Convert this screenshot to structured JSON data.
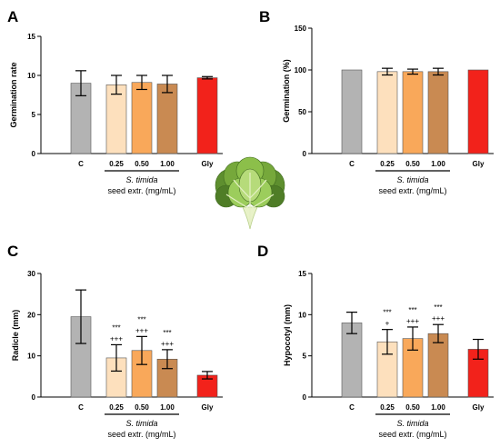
{
  "chart_data": [
    {
      "type": "bar",
      "panel": "A",
      "ylabel": "Germination rate",
      "ylim": [
        0,
        15
      ],
      "yticks": [
        0,
        5,
        10,
        15
      ],
      "categories": [
        "C",
        "0.25",
        "0.50",
        "1.00",
        "Gly"
      ],
      "values": [
        9.0,
        8.8,
        9.1,
        8.9,
        9.7
      ],
      "errors": [
        1.6,
        1.2,
        0.9,
        1.1,
        0.15
      ],
      "annotations": [
        [],
        [],
        [],
        [],
        []
      ],
      "group_label": "S. timida",
      "group_sublabel": "seed extr. (mg/mL)"
    },
    {
      "type": "bar",
      "panel": "B",
      "ylabel": "Germination (%)",
      "ylim": [
        0,
        150
      ],
      "yticks": [
        0,
        50,
        100,
        150
      ],
      "categories": [
        "C",
        "0.25",
        "0.50",
        "1.00",
        "Gly"
      ],
      "values": [
        100,
        98,
        98,
        98,
        100
      ],
      "errors": [
        0,
        4,
        3,
        4,
        0
      ],
      "annotations": [
        [],
        [],
        [],
        [],
        []
      ],
      "group_label": "S. timida",
      "group_sublabel": "seed extr. (mg/mL)"
    },
    {
      "type": "bar",
      "panel": "C",
      "ylabel": "Radicle (mm)",
      "ylim": [
        0,
        30
      ],
      "yticks": [
        0,
        10,
        20,
        30
      ],
      "categories": [
        "C",
        "0.25",
        "0.50",
        "1.00",
        "Gly"
      ],
      "values": [
        19.5,
        9.5,
        11.3,
        9.2,
        5.3
      ],
      "errors": [
        6.5,
        3.2,
        3.4,
        2.3,
        0.9
      ],
      "annotations": [
        [],
        [
          "***",
          "+++"
        ],
        [
          "***",
          "+++"
        ],
        [
          "***",
          "+++"
        ],
        []
      ],
      "group_label": "S. timida",
      "group_sublabel": "seed extr. (mg/mL)"
    },
    {
      "type": "bar",
      "panel": "D",
      "ylabel": "Hypocotyl (mm)",
      "ylim": [
        0,
        15
      ],
      "yticks": [
        0,
        5,
        10,
        15
      ],
      "categories": [
        "C",
        "0.25",
        "0.50",
        "1.00",
        "Gly"
      ],
      "values": [
        9.0,
        6.7,
        7.1,
        7.7,
        5.8
      ],
      "errors": [
        1.3,
        1.5,
        1.4,
        1.1,
        1.2
      ],
      "annotations": [
        [],
        [
          "***",
          "+"
        ],
        [
          "***",
          "+++"
        ],
        [
          "***",
          "+++"
        ],
        []
      ],
      "group_label": "S. timida",
      "group_sublabel": "seed extr. (mg/mL)"
    }
  ],
  "bar_colors": [
    "#b3b3b3",
    "#fde0bd",
    "#f9a85a",
    "#c98a52",
    "#f2221b"
  ],
  "icon": "lettuce-icon"
}
